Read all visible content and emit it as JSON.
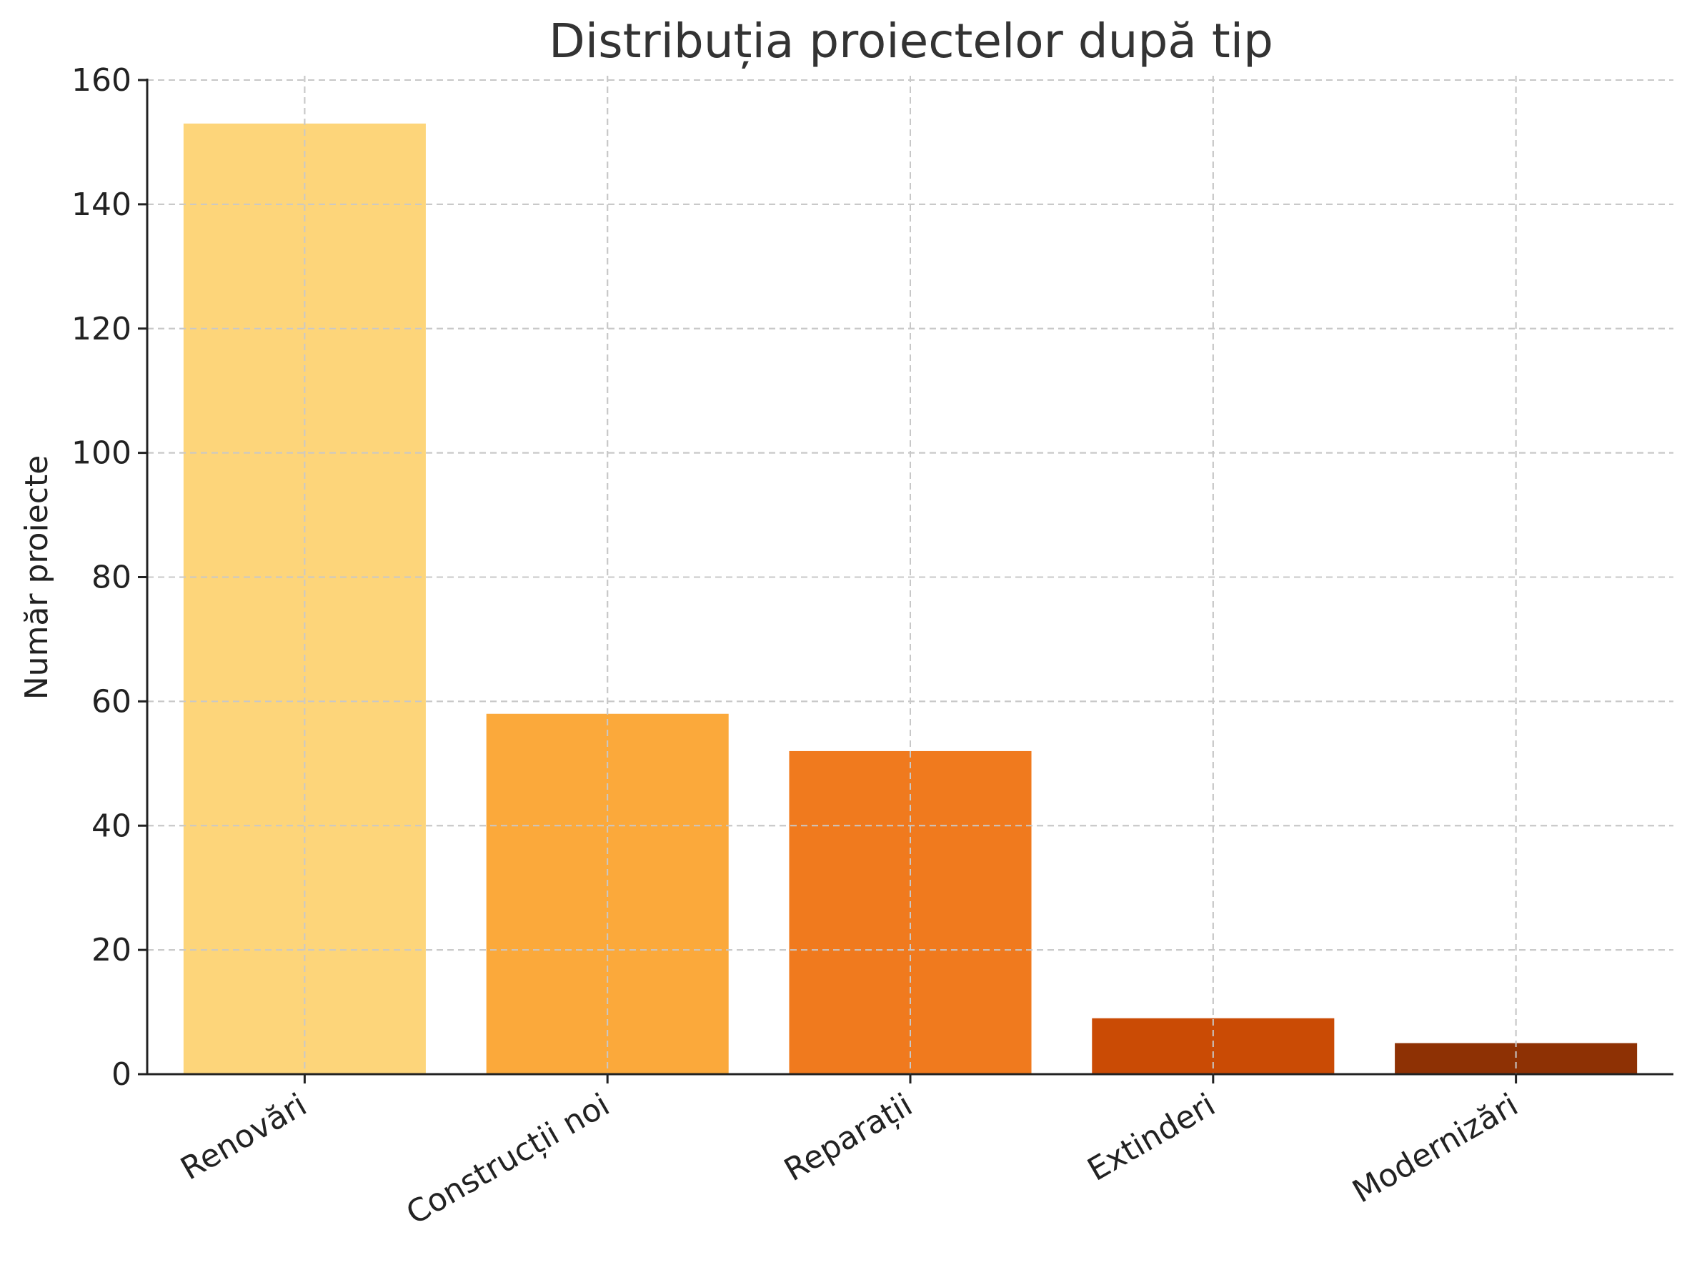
{
  "chart_data": {
    "type": "bar",
    "title": "Distribuția proiectelor după tip",
    "xlabel": "",
    "ylabel": "Număr proiecte",
    "categories": [
      "Renovări",
      "Construcții noi",
      "Reparații",
      "Extinderi",
      "Modernizări"
    ],
    "values": [
      153,
      58,
      52,
      9,
      5
    ],
    "colors": [
      "#fdd57a",
      "#fba93b",
      "#f07a1e",
      "#ca4b05",
      "#8e3104"
    ],
    "ylim": [
      0,
      160
    ],
    "yticks": [
      0,
      20,
      40,
      60,
      80,
      100,
      120,
      140,
      160
    ],
    "ytick_labels": [
      "0",
      "20",
      "40",
      "60",
      "80",
      "100",
      "120",
      "140",
      "160"
    ],
    "grid": true,
    "grid_style": "dashed",
    "legend": "none"
  }
}
